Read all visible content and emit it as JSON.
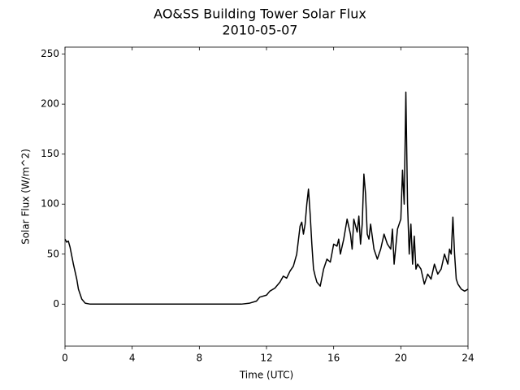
{
  "chart_data": {
    "type": "line",
    "title": "AO&SS Building Tower Solar Flux",
    "subtitle": "2010-05-07",
    "x_label": "Time (UTC)",
    "y_label": "Solar Flux (W/m^2)",
    "xlim": [
      0,
      24
    ],
    "xticks": [
      0,
      4,
      8,
      12,
      16,
      20,
      24
    ],
    "ylim": [
      -42,
      257
    ],
    "yticks": [
      0,
      50,
      100,
      150,
      200,
      250
    ],
    "series": [
      {
        "color": "#000000",
        "x": [
          0,
          0.1,
          0.2,
          0.3,
          0.5,
          0.7,
          0.8,
          1.0,
          1.2,
          1.5,
          2,
          3,
          4,
          5,
          6,
          7,
          8,
          9,
          10,
          10.5,
          11,
          11.4,
          11.6,
          12,
          12.2,
          12.5,
          12.8,
          13,
          13.2,
          13.4,
          13.6,
          13.8,
          14,
          14.1,
          14.2,
          14.3,
          14.4,
          14.5,
          14.6,
          14.7,
          14.8,
          14.9,
          15,
          15.1,
          15.2,
          15.4,
          15.6,
          15.8,
          16,
          16.2,
          16.3,
          16.4,
          16.6,
          16.8,
          17,
          17.1,
          17.2,
          17.4,
          17.5,
          17.6,
          17.7,
          17.8,
          17.9,
          18,
          18.1,
          18.2,
          18.4,
          18.6,
          18.8,
          19,
          19.2,
          19.4,
          19.5,
          19.6,
          19.8,
          20,
          20.1,
          20.2,
          20.3,
          20.4,
          20.5,
          20.6,
          20.7,
          20.8,
          20.9,
          21,
          21.2,
          21.4,
          21.6,
          21.8,
          22,
          22.2,
          22.4,
          22.6,
          22.8,
          22.9,
          23,
          23.1,
          23.2,
          23.3,
          23.4,
          23.6,
          23.8,
          24
        ],
        "values": [
          65,
          62,
          63,
          57,
          40,
          25,
          15,
          5,
          1,
          0,
          0,
          0,
          0,
          0,
          0,
          0,
          0,
          0,
          0,
          0,
          1,
          3,
          7,
          9,
          13,
          16,
          22,
          28,
          26,
          33,
          38,
          50,
          78,
          82,
          70,
          80,
          100,
          115,
          90,
          60,
          35,
          28,
          22,
          20,
          18,
          35,
          45,
          42,
          60,
          58,
          65,
          50,
          65,
          85,
          70,
          55,
          85,
          72,
          88,
          60,
          80,
          130,
          110,
          70,
          65,
          80,
          55,
          45,
          55,
          70,
          60,
          55,
          75,
          40,
          75,
          85,
          134,
          100,
          212,
          100,
          50,
          80,
          40,
          68,
          35,
          40,
          35,
          20,
          30,
          25,
          40,
          30,
          35,
          50,
          40,
          55,
          50,
          87,
          50,
          25,
          20,
          15,
          13,
          15
        ]
      }
    ]
  }
}
